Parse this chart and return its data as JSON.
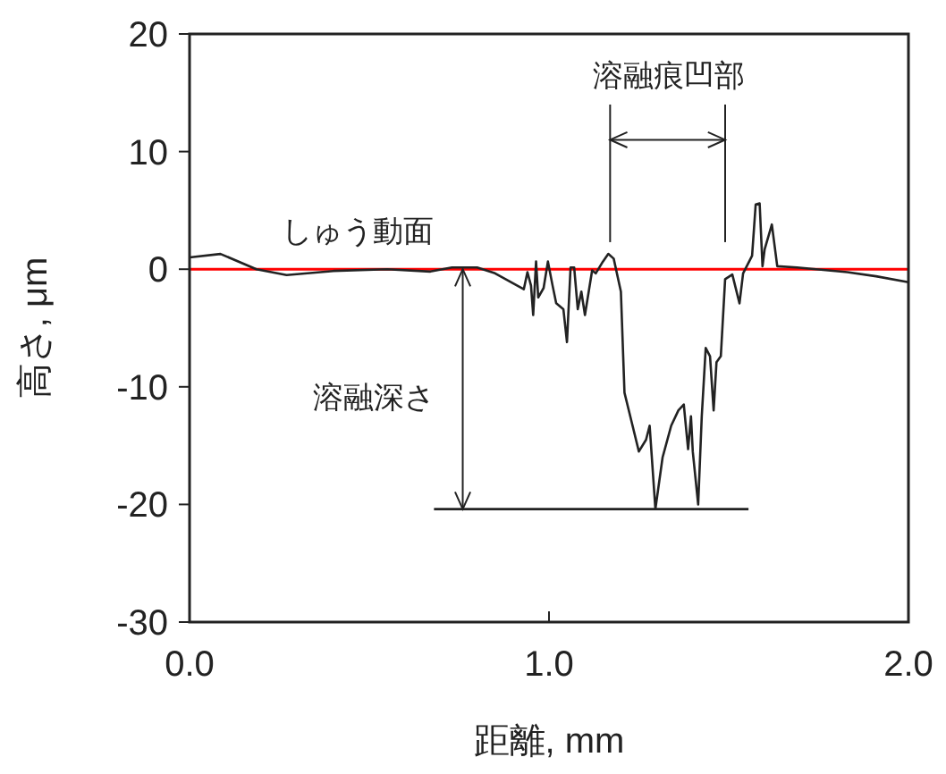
{
  "chart_data": {
    "type": "line",
    "xlabel": "距離, mm",
    "ylabel": "高さ, μm",
    "xlim": [
      0,
      2
    ],
    "ylim": [
      -30,
      20
    ],
    "xticks": [
      {
        "value": 0,
        "label": "0.0"
      },
      {
        "value": 1,
        "label": "1.0"
      },
      {
        "value": 2,
        "label": "2.0"
      }
    ],
    "yticks": [
      -30,
      -20,
      -10,
      0,
      10,
      20
    ],
    "grid": false,
    "line_style": "solid",
    "annotations": [
      {
        "text": "しゅう動面",
        "x": 0.76,
        "y": 0
      },
      "溶融痕凹部",
      "溶融深さ"
    ],
    "ref_lines": [
      {
        "axis": "y",
        "value": 0,
        "color": "#ff0000"
      }
    ],
    "series": [
      {
        "color": "#222222",
        "x": [
          0,
          0.086,
          0.186,
          0.27,
          0.4,
          0.55,
          0.67,
          0.73,
          0.8,
          0.85,
          0.93,
          0.94,
          0.95,
          0.956,
          0.964,
          0.97,
          0.985,
          0.997,
          1.01,
          1.02,
          1.04,
          1.05,
          1.06,
          1.07,
          1.08,
          1.09,
          1.1,
          1.12,
          1.13,
          1.15,
          1.165,
          1.18,
          1.2,
          1.21,
          1.23,
          1.25,
          1.27,
          1.28,
          1.296,
          1.316,
          1.34,
          1.36,
          1.375,
          1.387,
          1.395,
          1.4,
          1.415,
          1.425,
          1.436,
          1.448,
          1.458,
          1.466,
          1.478,
          1.49,
          1.51,
          1.53,
          1.54,
          1.565,
          1.575,
          1.586,
          1.594,
          1.6,
          1.62,
          1.635,
          1.69,
          1.83,
          1.91,
          2.0
        ],
        "values": [
          1.0,
          1.3,
          0,
          -0.5,
          -0.15,
          0,
          -0.2,
          0.15,
          0.15,
          -0.35,
          -1.7,
          -0.25,
          -1.4,
          -3.9,
          0.65,
          -2.4,
          -1.6,
          0.65,
          -1.4,
          -2.9,
          -3.4,
          -6.2,
          0.15,
          0.15,
          -3.4,
          -1.9,
          -3.9,
          -0.1,
          -0.35,
          0.65,
          1.3,
          0.9,
          -1.9,
          -10.5,
          -13.0,
          -15.5,
          -14.5,
          -13.3,
          -20.4,
          -16.0,
          -13.3,
          -12.0,
          -11.5,
          -15.3,
          -12.5,
          -15.5,
          -20.0,
          -12.5,
          -6.7,
          -7.4,
          -12.0,
          -7.9,
          -7.4,
          -0.85,
          -0.45,
          -2.9,
          -0.35,
          1.15,
          5.5,
          5.6,
          0.25,
          1.7,
          3.8,
          0.25,
          0.15,
          -0.25,
          -0.6,
          -1.1
        ]
      },
      {
        "color": "#222222",
        "x": [
          0.68,
          1.555
        ],
        "values": [
          -20.4,
          -20.4
        ]
      }
    ]
  }
}
